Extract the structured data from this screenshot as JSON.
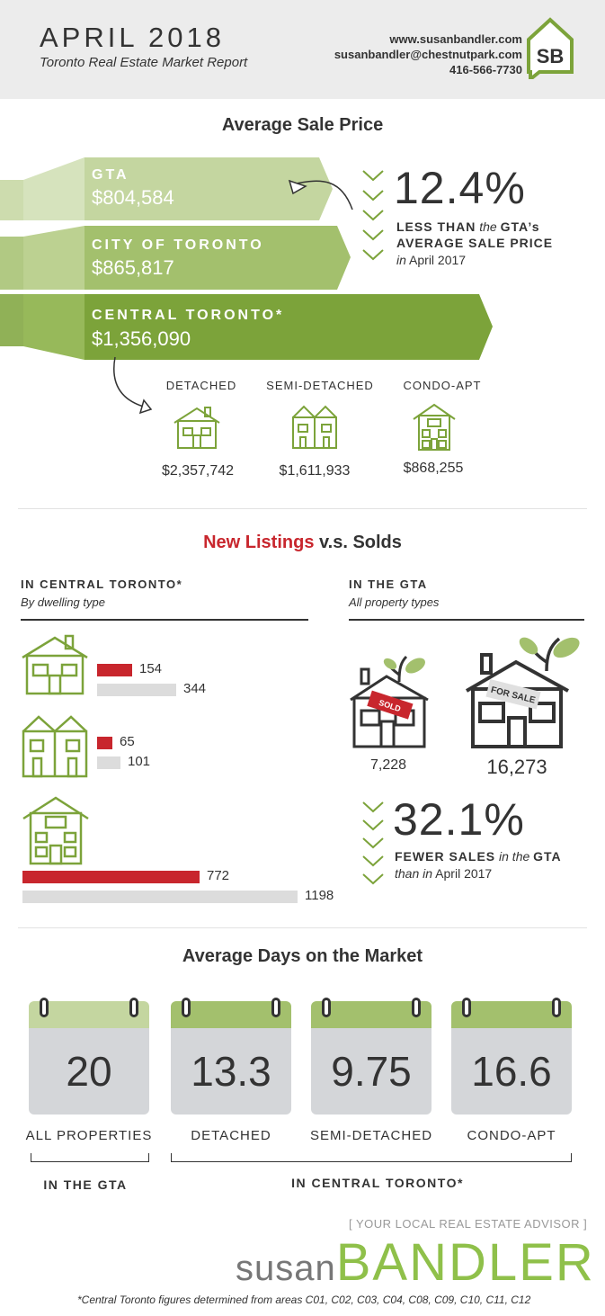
{
  "header": {
    "title": "APRIL 2018",
    "subtitle": "Toronto Real Estate Market Report",
    "website": "www.susanbandler.com",
    "email": "susanbandler@chestnutpark.com",
    "phone": "416-566-7730",
    "logo_text": "SB"
  },
  "avg_sale_price": {
    "title": "Average Sale Price",
    "bands": [
      {
        "label": "GTA",
        "value": "$804,584"
      },
      {
        "label": "CITY OF TORONTO",
        "value": "$865,817"
      },
      {
        "label": "CENTRAL TORONTO*",
        "value": "$1,356,090"
      }
    ],
    "pct": "12.4%",
    "pct_line1_a": "LESS THAN",
    "pct_line1_b": "the",
    "pct_line1_c": "GTA’s",
    "pct_line2": "AVERAGE SALE PRICE",
    "pct_line3_a": "in",
    "pct_line3_b": "April 2017",
    "types": [
      {
        "label": "DETACHED",
        "price": "$2,357,742"
      },
      {
        "label": "SEMI-DETACHED",
        "price": "$1,611,933"
      },
      {
        "label": "CONDO-APT",
        "price": "$868,255"
      }
    ]
  },
  "listings": {
    "title_a": "New Listings",
    "title_b": "v.s. Solds",
    "left_head": "IN CENTRAL TORONTO*",
    "left_sub": "By dwelling type",
    "right_head": "IN THE GTA",
    "right_sub": "All property types",
    "rows": [
      {
        "sold": 154,
        "listed": 344
      },
      {
        "sold": 65,
        "listed": 101
      },
      {
        "sold": 772,
        "listed": 1198
      }
    ],
    "sold_tag": "SOLD",
    "forsale_tag": "FOR SALE",
    "gta_sold": "7,228",
    "gta_listed": "16,273",
    "pct": "32.1%",
    "pct_line1_a": "FEWER SALES",
    "pct_line1_b": "in the",
    "pct_line1_c": "GTA",
    "pct_line2_a": "than in",
    "pct_line2_b": "April 2017"
  },
  "days": {
    "title": "Average Days on the Market",
    "cards": [
      {
        "value": "20",
        "label": "ALL PROPERTIES"
      },
      {
        "value": "13.3",
        "label": "DETACHED"
      },
      {
        "value": "9.75",
        "label": "SEMI-DETACHED"
      },
      {
        "value": "16.6",
        "label": "CONDO-APT"
      }
    ],
    "group_gta": "IN THE GTA",
    "group_central": "IN CENTRAL TORONTO*"
  },
  "footer": {
    "tagline": "[ YOUR LOCAL REAL ESTATE ADVISOR ]",
    "name_a": "susan",
    "name_b": "BANDLER",
    "note": "*Central Toronto figures determined from areas C01, C02, C03, C04, C08, C09, C10, C11, C12"
  },
  "colors": {
    "green_light": "#c4d6a0",
    "green_mid": "#a3c06d",
    "green_dark": "#7ca33a",
    "red": "#c8262d",
    "grey": "#dcdcdc"
  }
}
